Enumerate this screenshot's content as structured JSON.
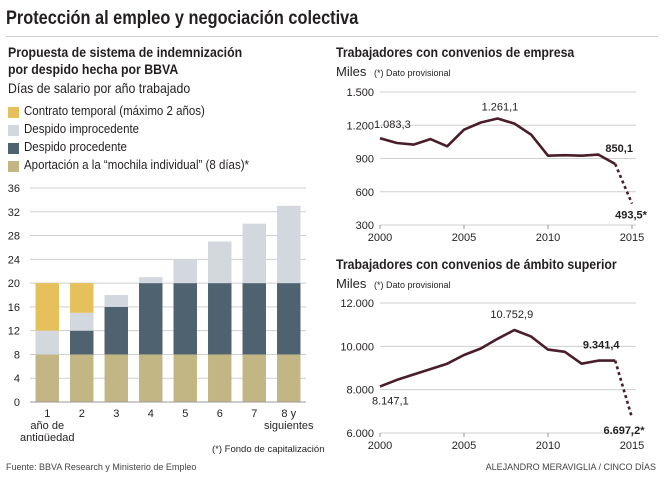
{
  "title": "Protección al empleo y negociación colectiva",
  "left_panel": {
    "subtitle_line1": "Propuesta de sistema de indemnización",
    "subtitle_line2": "por despido hecha por BBVA",
    "units": "Días de salario por año trabajado",
    "footnote": "(*) Fondo de capitalización"
  },
  "top_right": {
    "subtitle": "Trabajadores con convenios de empresa",
    "unit": "Miles",
    "note": "(*) Dato provisional"
  },
  "bottom_right": {
    "subtitle": "Trabajadores con convenios de ámbito superior",
    "unit": "Miles",
    "note": "(*) Dato provisional"
  },
  "source": "Fuente: BBVA Research y Ministerio de Empleo",
  "credit": "ALEJANDRO MERAVIGLIA / CINCO DÍAS",
  "colors": {
    "temporal": "#e6c05a",
    "improcedente": "#d2d8de",
    "procedente": "#4f6270",
    "mochila": "#c2b684",
    "line": "#4a1e28",
    "grid": "#cfcfcf"
  },
  "chart_data": [
    {
      "type": "bar",
      "stacked": true,
      "categories": [
        "1 año de antigüedad",
        "2",
        "3",
        "4",
        "5",
        "6",
        "7",
        "8 y siguientes"
      ],
      "category_labels": [
        [
          "1",
          "año de",
          "antigüedad"
        ],
        [
          "2"
        ],
        [
          "3"
        ],
        [
          "4"
        ],
        [
          "5"
        ],
        [
          "6"
        ],
        [
          "7"
        ],
        [
          "8 y",
          "siguientes"
        ]
      ],
      "series": [
        {
          "key": "mochila",
          "name": "Aportación a la “mochila individual” (8 días)*",
          "values": [
            8,
            8,
            8,
            8,
            8,
            8,
            8,
            8
          ]
        },
        {
          "key": "procedente",
          "name": "Despido procedente",
          "values": [
            0,
            4,
            8,
            12,
            12,
            12,
            12,
            12
          ]
        },
        {
          "key": "improcedente",
          "name": "Despido improcedente",
          "values": [
            4,
            3,
            2,
            1,
            4,
            7,
            10,
            13
          ]
        },
        {
          "key": "temporal",
          "name": "Contrato temporal (máximo 2 años)",
          "values": [
            8,
            5,
            0,
            0,
            0,
            0,
            0,
            0
          ]
        }
      ],
      "legend_order": [
        "temporal",
        "improcedente",
        "procedente",
        "mochila"
      ],
      "ylim": [
        0,
        36
      ],
      "yticks": [
        0,
        4,
        8,
        12,
        16,
        20,
        24,
        28,
        32,
        36
      ],
      "ylabel": "Días de salario por año trabajado"
    },
    {
      "type": "line",
      "title": "Trabajadores con convenios de empresa",
      "ylabel": "Miles",
      "x": [
        2000,
        2001,
        2002,
        2003,
        2004,
        2005,
        2006,
        2007,
        2008,
        2009,
        2010,
        2011,
        2012,
        2013,
        2014,
        2015
      ],
      "y": [
        1083.3,
        1040,
        1025,
        1075,
        1010,
        1160,
        1225,
        1261.1,
        1215,
        1115,
        925,
        930,
        925,
        935,
        850.1,
        493.5
      ],
      "provisional_from_index": 14,
      "xlim": [
        2000,
        2015
      ],
      "xticks": [
        2000,
        2005,
        2010,
        2015
      ],
      "ylim": [
        300,
        1500
      ],
      "yticks": [
        300,
        600,
        900,
        1200,
        1500
      ],
      "ytick_labels": [
        "300",
        "600",
        "900",
        "1.200",
        "1.500"
      ],
      "annotations": [
        {
          "index": 0,
          "text": "1.083,3"
        },
        {
          "index": 7,
          "text": "1.261,1"
        },
        {
          "index": 14,
          "text": "850,1"
        },
        {
          "index": 15,
          "text": "493,5*"
        }
      ]
    },
    {
      "type": "line",
      "title": "Trabajadores con convenios de ámbito superior",
      "ylabel": "Miles",
      "x": [
        2000,
        2001,
        2002,
        2003,
        2004,
        2005,
        2006,
        2007,
        2008,
        2009,
        2010,
        2011,
        2012,
        2013,
        2014,
        2015
      ],
      "y": [
        8147.1,
        8450,
        8700,
        8950,
        9200,
        9600,
        9900,
        10350,
        10752.9,
        10450,
        9850,
        9750,
        9200,
        9341.4,
        9341.4,
        6697.2
      ],
      "provisional_from_index": 14,
      "xlim": [
        2000,
        2015
      ],
      "xticks": [
        2000,
        2005,
        2010,
        2015
      ],
      "ylim": [
        6000,
        12000
      ],
      "yticks": [
        6000,
        8000,
        10000,
        12000
      ],
      "ytick_labels": [
        "6.000",
        "8.000",
        "10.000",
        "12.000"
      ],
      "annotations": [
        {
          "index": 0,
          "text": "8.147,1"
        },
        {
          "index": 8,
          "text": "10.752,9"
        },
        {
          "index": 14,
          "text": "9.341,4"
        },
        {
          "index": 15,
          "text": "6.697,2*"
        }
      ]
    }
  ]
}
